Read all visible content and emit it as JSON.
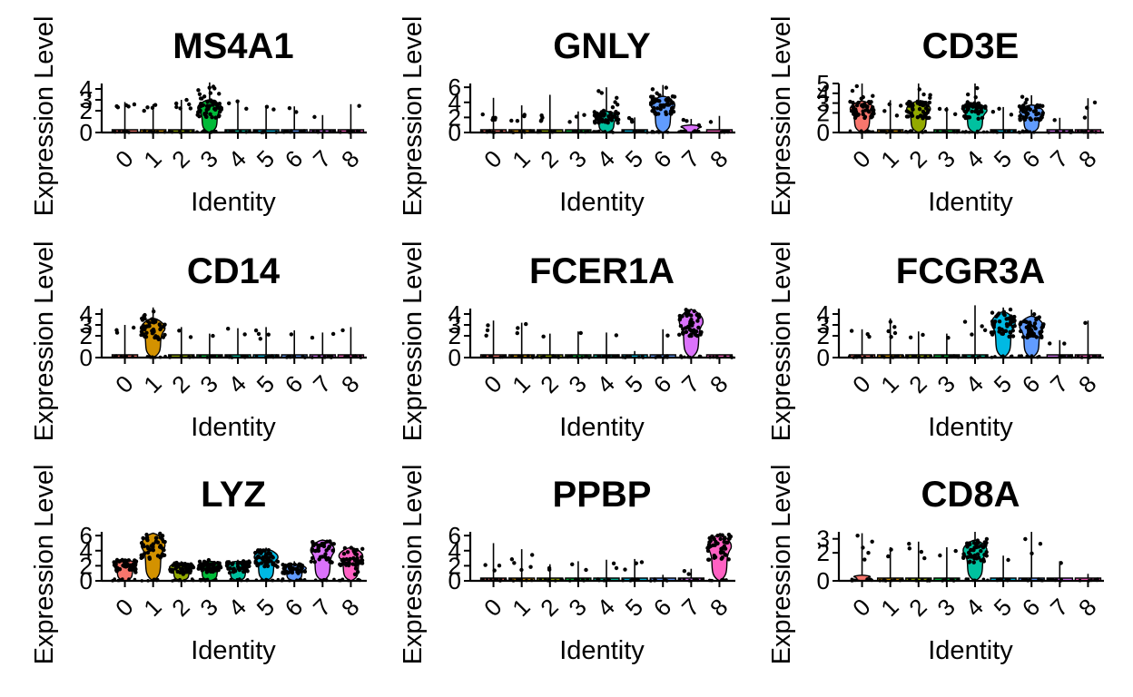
{
  "chart_data": [
    {
      "type": "violin",
      "title": "MS4A1",
      "xlabel": "Identity",
      "ylabel": "Expression Level",
      "categories": [
        "0",
        "1",
        "2",
        "3",
        "4",
        "5",
        "6",
        "7",
        "8"
      ],
      "yticks": [
        0,
        2,
        3,
        4
      ],
      "ylim": [
        0,
        4.5
      ],
      "values": [
        {
          "max": 2.8,
          "body": 0.25,
          "points": [
            2.3,
            2.5,
            2.2,
            2.7,
            2.4
          ]
        },
        {
          "max": 2.6,
          "body": 0.2,
          "points": [
            2.1,
            2.4,
            2.2,
            2.5
          ]
        },
        {
          "max": 3.0,
          "body": 0.3,
          "points": [
            2.2,
            2.6,
            2.9,
            2.4,
            2.7,
            2.3
          ]
        },
        {
          "max": 4.6,
          "body": 3.0,
          "points": [
            2.0,
            2.4,
            2.8,
            3.2,
            3.5,
            3.8,
            4.1,
            4.3,
            2.6,
            3.0,
            3.4,
            3.7,
            2.2,
            4.0,
            3.3
          ]
        },
        {
          "max": 3.0,
          "body": 0.15,
          "points": [
            2.2,
            2.6,
            2.8
          ]
        },
        {
          "max": 2.5,
          "body": 0.1,
          "points": [
            2.0,
            2.3
          ]
        },
        {
          "max": 2.4,
          "body": 0.1,
          "points": [
            2.0,
            2.2
          ]
        },
        {
          "max": 1.6,
          "body": 0.05,
          "points": [
            1.4
          ]
        },
        {
          "max": 2.6,
          "body": 0.05,
          "points": [
            2.4
          ]
        }
      ]
    },
    {
      "type": "violin",
      "title": "GNLY",
      "xlabel": "Identity",
      "ylabel": "Expression Level",
      "categories": [
        "0",
        "1",
        "2",
        "3",
        "4",
        "5",
        "6",
        "7",
        "8"
      ],
      "yticks": [
        0,
        2,
        4,
        6
      ],
      "ylim": [
        0,
        6.5
      ],
      "values": [
        {
          "max": 4.6,
          "body": 0.3,
          "points": [
            1.6,
            2.0,
            1.8,
            2.4,
            1.5
          ]
        },
        {
          "max": 3.6,
          "body": 0.25,
          "points": [
            1.5,
            2.0,
            2.3,
            1.7
          ]
        },
        {
          "max": 5.0,
          "body": 0.3,
          "points": [
            1.4,
            1.9,
            2.2,
            1.6
          ]
        },
        {
          "max": 2.8,
          "body": 0.2,
          "points": [
            1.4,
            2.0,
            2.4
          ]
        },
        {
          "max": 6.0,
          "body": 2.8,
          "points": [
            1.5,
            2.5,
            3.2,
            3.8,
            4.5,
            5.2,
            2.0,
            4.0,
            3.0,
            5.6
          ]
        },
        {
          "max": 2.0,
          "body": 0.2,
          "points": [
            1.3,
            1.6,
            1.8
          ]
        },
        {
          "max": 6.3,
          "body": 4.8,
          "points": [
            3.0,
            3.6,
            4.2,
            4.8,
            5.2,
            5.6,
            6.0,
            4.5,
            3.8,
            5.0
          ]
        },
        {
          "max": 1.8,
          "body": 1.0,
          "points": [
            1.0,
            1.4,
            1.6
          ]
        },
        {
          "max": 2.2,
          "body": 0.1,
          "points": [
            1.5
          ]
        }
      ]
    },
    {
      "type": "violin",
      "title": "CD3E",
      "xlabel": "Identity",
      "ylabel": "Expression Level",
      "categories": [
        "0",
        "1",
        "2",
        "3",
        "4",
        "5",
        "6",
        "7",
        "8"
      ],
      "yticks": [
        0,
        2,
        3,
        4,
        5
      ],
      "ylim": [
        0,
        5
      ],
      "values": [
        {
          "max": 5.0,
          "body": 3.2,
          "points": [
            2.0,
            2.5,
            3.0,
            3.4,
            3.8,
            4.2,
            2.8,
            3.6,
            4.6
          ]
        },
        {
          "max": 3.3,
          "body": 0.3,
          "points": [
            1.8,
            2.2,
            2.6,
            3.0
          ]
        },
        {
          "max": 5.0,
          "body": 3.2,
          "points": [
            2.0,
            2.6,
            3.0,
            3.5,
            4.0,
            4.5,
            2.4,
            3.8
          ]
        },
        {
          "max": 2.6,
          "body": 0.2,
          "points": [
            1.8,
            2.2,
            2.5
          ]
        },
        {
          "max": 5.0,
          "body": 3.0,
          "points": [
            2.0,
            2.6,
            3.2,
            3.6,
            4.0,
            4.6,
            2.8
          ]
        },
        {
          "max": 2.6,
          "body": 0.2,
          "points": [
            1.8,
            2.2,
            2.5
          ]
        },
        {
          "max": 3.8,
          "body": 2.8,
          "points": [
            2.0,
            2.5,
            3.0,
            3.4,
            2.2,
            3.6
          ]
        },
        {
          "max": 1.5,
          "body": 0.1,
          "points": [
            1.2
          ]
        },
        {
          "max": 3.5,
          "body": 0.2,
          "points": [
            1.5,
            2.5,
            3.2
          ]
        }
      ]
    },
    {
      "type": "violin",
      "title": "CD14",
      "xlabel": "Identity",
      "ylabel": "Expression Level",
      "categories": [
        "0",
        "1",
        "2",
        "3",
        "4",
        "5",
        "6",
        "7",
        "8"
      ],
      "yticks": [
        0,
        2,
        3,
        4
      ],
      "ylim": [
        0,
        4.5
      ],
      "values": [
        {
          "max": 3.0,
          "body": 0.2,
          "points": [
            2.2,
            2.5,
            2.8
          ]
        },
        {
          "max": 4.6,
          "body": 3.6,
          "points": [
            1.8,
            2.2,
            2.6,
            3.0,
            3.4,
            3.8,
            4.2,
            2.4,
            3.2,
            4.0
          ]
        },
        {
          "max": 2.8,
          "body": 0.2,
          "points": [
            2.0,
            2.4
          ]
        },
        {
          "max": 2.2,
          "body": 0.1,
          "points": [
            2.0
          ]
        },
        {
          "max": 2.7,
          "body": 0.15,
          "points": [
            2.2,
            2.6
          ]
        },
        {
          "max": 2.8,
          "body": 0.2,
          "points": [
            1.8,
            2.2,
            2.5,
            2.0
          ]
        },
        {
          "max": 2.5,
          "body": 0.1,
          "points": [
            2.2
          ]
        },
        {
          "max": 2.3,
          "body": 0.1,
          "points": [
            1.8,
            2.1
          ]
        },
        {
          "max": 2.8,
          "body": 0.05,
          "points": [
            2.6
          ]
        }
      ]
    },
    {
      "type": "violin",
      "title": "FCER1A",
      "xlabel": "Identity",
      "ylabel": "Expression Level",
      "categories": [
        "0",
        "1",
        "2",
        "3",
        "4",
        "5",
        "6",
        "7",
        "8"
      ],
      "yticks": [
        0,
        2,
        3,
        4
      ],
      "ylim": [
        0,
        4.5
      ],
      "values": [
        {
          "max": 3.4,
          "body": 0.15,
          "points": [
            2.0,
            2.4,
            3.0
          ]
        },
        {
          "max": 3.2,
          "body": 0.15,
          "points": [
            2.2,
            2.6,
            3.0
          ]
        },
        {
          "max": 2.2,
          "body": 0.05,
          "points": [
            2.0
          ]
        },
        {
          "max": 2.4,
          "body": 0.05,
          "points": [
            2.2
          ]
        },
        {
          "max": 2.3,
          "body": 0.05,
          "points": [
            2.1
          ]
        },
        {
          "max": 0.6,
          "body": 0.05,
          "points": []
        },
        {
          "max": 2.6,
          "body": 0.05,
          "points": [
            2.0
          ]
        },
        {
          "max": 4.5,
          "body": 4.4,
          "points": [
            2.5,
            3.0,
            3.4,
            3.8,
            4.1,
            2.8,
            3.6
          ]
        },
        {
          "max": 0.3,
          "body": 0.05,
          "points": []
        }
      ]
    },
    {
      "type": "violin",
      "title": "FCGR3A",
      "xlabel": "Identity",
      "ylabel": "Expression Level",
      "categories": [
        "0",
        "1",
        "2",
        "3",
        "4",
        "5",
        "6",
        "7",
        "8"
      ],
      "yticks": [
        0,
        2,
        3,
        4
      ],
      "ylim": [
        0,
        4.5
      ],
      "values": [
        {
          "max": 2.6,
          "body": 0.3,
          "points": [
            1.8,
            2.1,
            2.4
          ]
        },
        {
          "max": 3.6,
          "body": 0.3,
          "points": [
            1.8,
            2.2,
            2.5,
            2.8,
            3.2
          ]
        },
        {
          "max": 2.4,
          "body": 0.2,
          "points": [
            1.8,
            2.1
          ]
        },
        {
          "max": 2.2,
          "body": 0.1,
          "points": [
            1.9
          ]
        },
        {
          "max": 4.8,
          "body": 0.3,
          "points": [
            2.0,
            2.5,
            3.0,
            3.4
          ]
        },
        {
          "max": 4.6,
          "body": 4.2,
          "points": [
            2.0,
            2.6,
            3.2,
            3.6,
            4.0,
            4.3,
            2.8,
            3.8
          ]
        },
        {
          "max": 4.4,
          "body": 3.8,
          "points": [
            1.8,
            2.4,
            3.0,
            3.6,
            4.0,
            2.6,
            3.4
          ]
        },
        {
          "max": 1.6,
          "body": 0.05,
          "points": [
            1.2,
            1.4
          ]
        },
        {
          "max": 3.4,
          "body": 0.05,
          "points": [
            3.2
          ]
        }
      ]
    },
    {
      "type": "violin",
      "title": "LYZ",
      "xlabel": "Identity",
      "ylabel": "Expression Level",
      "categories": [
        "0",
        "1",
        "2",
        "3",
        "4",
        "5",
        "6",
        "7",
        "8"
      ],
      "yticks": [
        0,
        2,
        4,
        6
      ],
      "ylim": [
        0,
        6.5
      ],
      "values": [
        {
          "max": 2.9,
          "body": 2.8,
          "points": [
            1.0,
            1.5,
            2.0,
            2.4,
            2.8,
            1.8,
            2.2
          ]
        },
        {
          "max": 6.4,
          "body": 6.3,
          "points": [
            3.8,
            4.4,
            5.0,
            5.6,
            6.0,
            4.2,
            5.2,
            5.8
          ]
        },
        {
          "max": 2.6,
          "body": 2.4,
          "points": [
            1.0,
            1.5,
            2.0,
            2.4,
            1.8
          ]
        },
        {
          "max": 2.8,
          "body": 2.6,
          "points": [
            1.0,
            1.6,
            2.2,
            2.6,
            1.9
          ]
        },
        {
          "max": 2.8,
          "body": 2.6,
          "points": [
            1.0,
            1.6,
            2.2,
            2.6
          ]
        },
        {
          "max": 4.4,
          "body": 4.2,
          "points": [
            2.0,
            2.6,
            3.2,
            3.8,
            4.2,
            3.0
          ]
        },
        {
          "max": 2.6,
          "body": 2.2,
          "points": [
            1.0,
            1.6,
            2.0
          ]
        },
        {
          "max": 5.5,
          "body": 5.4,
          "points": [
            4.6,
            5.0,
            5.3
          ]
        },
        {
          "max": 4.5,
          "body": 4.4,
          "points": [
            0.8,
            1.5,
            2.2,
            3.0,
            1.2
          ]
        }
      ]
    },
    {
      "type": "violin",
      "title": "PPBP",
      "xlabel": "Identity",
      "ylabel": "Expression Level",
      "categories": [
        "0",
        "1",
        "2",
        "3",
        "4",
        "5",
        "6",
        "7",
        "8"
      ],
      "yticks": [
        0,
        2,
        4,
        6
      ],
      "ylim": [
        0,
        6.5
      ],
      "values": [
        {
          "max": 5.0,
          "body": 0.15,
          "points": [
            1.5,
            2.0,
            2.2
          ]
        },
        {
          "max": 4.2,
          "body": 0.3,
          "points": [
            1.4,
            1.8,
            2.4,
            3.0,
            3.6
          ]
        },
        {
          "max": 2.2,
          "body": 0.1,
          "points": [
            1.4,
            1.8
          ]
        },
        {
          "max": 2.6,
          "body": 0.1,
          "points": [
            1.6,
            2.2
          ]
        },
        {
          "max": 2.8,
          "body": 0.1,
          "points": [
            1.6,
            2.4
          ]
        },
        {
          "max": 2.9,
          "body": 0.1,
          "points": [
            1.5,
            2.2,
            2.6
          ]
        },
        {
          "max": 0.8,
          "body": 0.1,
          "points": []
        },
        {
          "max": 1.6,
          "body": 0.1,
          "points": [
            1.0,
            1.3
          ]
        },
        {
          "max": 6.2,
          "body": 6.1,
          "points": [
            4.6,
            5.2,
            5.8,
            6.0,
            5.5
          ]
        }
      ]
    },
    {
      "type": "violin",
      "title": "CD8A",
      "xlabel": "Identity",
      "ylabel": "Expression Level",
      "categories": [
        "0",
        "1",
        "2",
        "3",
        "4",
        "5",
        "6",
        "7",
        "8"
      ],
      "yticks": [
        0,
        2,
        3
      ],
      "ylim": [
        0,
        3.5
      ],
      "values": [
        {
          "max": 3.4,
          "body": 0.4,
          "points": [
            1.6,
            2.0,
            2.4,
            2.8,
            3.2
          ]
        },
        {
          "max": 2.4,
          "body": 0.1,
          "points": [
            1.8,
            2.2
          ]
        },
        {
          "max": 2.8,
          "body": 0.2,
          "points": [
            1.6,
            2.0,
            2.4,
            2.7
          ]
        },
        {
          "max": 2.4,
          "body": 0.1,
          "points": [
            1.8,
            2.2
          ]
        },
        {
          "max": 3.5,
          "body": 2.9,
          "points": [
            1.4,
            1.8,
            2.2,
            2.6,
            3.0,
            2.0
          ]
        },
        {
          "max": 1.8,
          "body": 0.05,
          "points": [
            1.5
          ]
        },
        {
          "max": 3.5,
          "body": 0.2,
          "points": [
            2.0,
            2.6,
            3.0
          ]
        },
        {
          "max": 1.4,
          "body": 0.05,
          "points": [
            1.2
          ]
        },
        {
          "max": 0.5,
          "body": 0.05,
          "points": []
        }
      ]
    }
  ],
  "colors": [
    "#F8766D",
    "#D39200",
    "#93AA00",
    "#00BA38",
    "#00C19F",
    "#00B9E3",
    "#619CFF",
    "#DB72FB",
    "#FF61C3"
  ]
}
